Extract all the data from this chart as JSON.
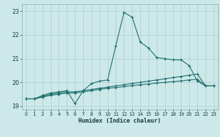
{
  "xlabel": "Humidex (Indice chaleur)",
  "bg_color": "#cce8e8",
  "grid_color": "#aacccc",
  "line_color": "#1a6b6b",
  "xlim": [
    -0.5,
    23.5
  ],
  "ylim": [
    18.85,
    23.3
  ],
  "yticks": [
    19,
    20,
    21,
    22,
    23
  ],
  "xticks": [
    0,
    1,
    2,
    3,
    4,
    5,
    6,
    7,
    8,
    9,
    10,
    11,
    12,
    13,
    14,
    15,
    16,
    17,
    18,
    19,
    20,
    21,
    22,
    23
  ],
  "series1": {
    "x": [
      0,
      1,
      2,
      3,
      4,
      5,
      6,
      7,
      8,
      9,
      10,
      11,
      12,
      13,
      14,
      15,
      16,
      17,
      18,
      19,
      20,
      21,
      22,
      23
    ],
    "y": [
      19.3,
      19.3,
      19.45,
      19.55,
      19.6,
      19.65,
      19.1,
      19.65,
      19.95,
      20.05,
      20.1,
      21.55,
      22.95,
      22.75,
      21.7,
      21.45,
      21.05,
      21.0,
      20.95,
      20.95,
      20.7,
      20.05,
      19.85,
      19.85
    ]
  },
  "series2": {
    "x": [
      0,
      1,
      2,
      3,
      4,
      5,
      6,
      7,
      8,
      9,
      10,
      11,
      12,
      13,
      14,
      15,
      16,
      17,
      18,
      19,
      20,
      21,
      22,
      23
    ],
    "y": [
      19.3,
      19.3,
      19.4,
      19.5,
      19.55,
      19.6,
      19.6,
      19.65,
      19.7,
      19.75,
      19.8,
      19.85,
      19.9,
      19.95,
      20.0,
      20.05,
      20.1,
      20.15,
      20.2,
      20.25,
      20.3,
      20.35,
      19.85,
      19.85
    ]
  },
  "series3": {
    "x": [
      0,
      1,
      2,
      3,
      4,
      5,
      6,
      7,
      8,
      9,
      10,
      11,
      12,
      13,
      14,
      15,
      16,
      17,
      18,
      19,
      20,
      21,
      22,
      23
    ],
    "y": [
      19.3,
      19.3,
      19.38,
      19.45,
      19.5,
      19.55,
      19.55,
      19.6,
      19.65,
      19.7,
      19.75,
      19.78,
      19.82,
      19.86,
      19.9,
      19.93,
      19.97,
      20.0,
      20.03,
      20.06,
      20.1,
      20.13,
      19.85,
      19.85
    ]
  }
}
